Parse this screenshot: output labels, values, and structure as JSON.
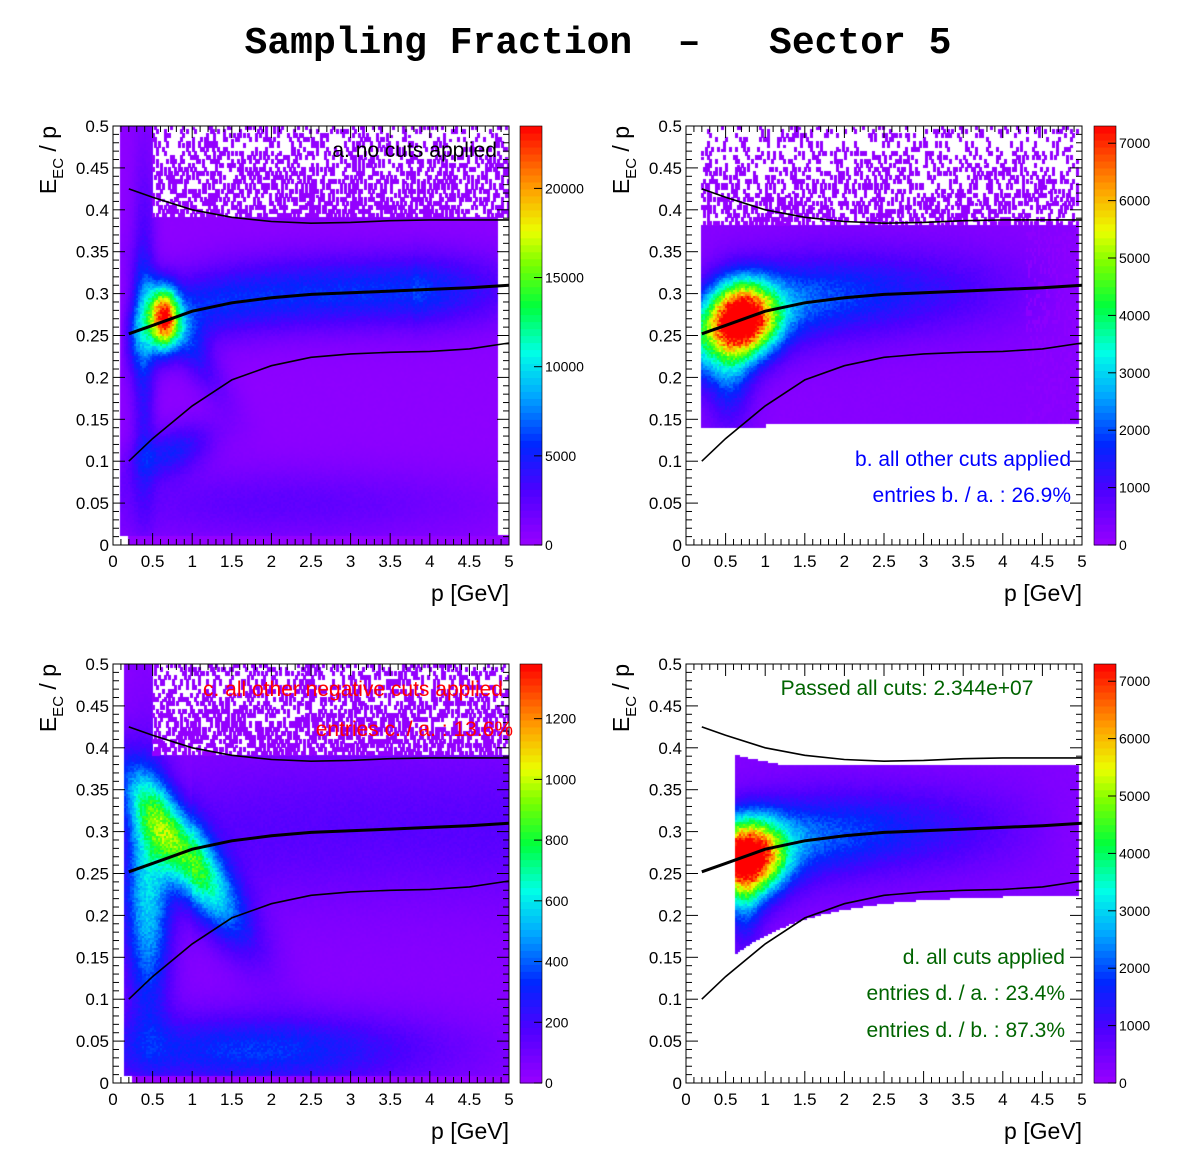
{
  "title": "Sampling Fraction  –   Sector 5",
  "chart_data": [
    {
      "type": "heatmap",
      "panel": "a",
      "annotations": [
        {
          "text": "a. no cuts applied",
          "color": "#000000"
        }
      ],
      "xlabel": "p  [GeV]",
      "ylabel_main": "E",
      "ylabel_sub": "EC",
      "ylabel_tail": " / p",
      "xlim": [
        0,
        5
      ],
      "ylim": [
        0,
        0.5
      ],
      "x_ticks": [
        "0",
        "0.5",
        "1",
        "1.5",
        "2",
        "2.5",
        "3",
        "3.5",
        "4",
        "4.5",
        "5"
      ],
      "y_ticks": [
        "0",
        "0.05",
        "0.1",
        "0.15",
        "0.2",
        "0.25",
        "0.3",
        "0.35",
        "0.4",
        "0.45",
        "0.5"
      ],
      "z_range": [
        0,
        23500
      ],
      "z_ticks": [
        {
          "value": 0,
          "label": "0"
        },
        {
          "value": 5000,
          "label": "5000"
        },
        {
          "value": 10000,
          "label": "10000"
        },
        {
          "value": 15000,
          "label": "15000"
        },
        {
          "value": 20000,
          "label": "20000"
        }
      ],
      "density_model": "a",
      "fill_background": true,
      "curves": {
        "x": [
          0.2,
          0.5,
          1,
          1.5,
          2,
          2.5,
          3,
          3.5,
          4,
          4.5,
          5
        ],
        "upper": [
          0.425,
          0.415,
          0.4,
          0.391,
          0.386,
          0.384,
          0.385,
          0.387,
          0.388,
          0.388,
          0.388
        ],
        "middle": [
          0.252,
          0.262,
          0.279,
          0.289,
          0.295,
          0.299,
          0.301,
          0.303,
          0.305,
          0.307,
          0.31
        ],
        "lower": [
          0.1,
          0.127,
          0.166,
          0.197,
          0.214,
          0.224,
          0.228,
          0.23,
          0.231,
          0.234,
          0.241
        ]
      }
    },
    {
      "type": "heatmap",
      "panel": "b",
      "annotations": [
        {
          "text": "b. all other cuts applied",
          "color": "#0000ff"
        },
        {
          "text": "entries b. / a. : 26.9%",
          "color": "#0000ff"
        }
      ],
      "xlabel": "p  [GeV]",
      "ylabel_main": "E",
      "ylabel_sub": "EC",
      "ylabel_tail": " / p",
      "xlim": [
        0,
        5
      ],
      "ylim": [
        0,
        0.5
      ],
      "x_ticks": [
        "0",
        "0.5",
        "1",
        "1.5",
        "2",
        "2.5",
        "3",
        "3.5",
        "4",
        "4.5",
        "5"
      ],
      "y_ticks": [
        "0",
        "0.05",
        "0.1",
        "0.15",
        "0.2",
        "0.25",
        "0.3",
        "0.35",
        "0.4",
        "0.45",
        "0.5"
      ],
      "z_range": [
        0,
        7300
      ],
      "z_ticks": [
        {
          "value": 0,
          "label": "0"
        },
        {
          "value": 1000,
          "label": "1000"
        },
        {
          "value": 2000,
          "label": "2000"
        },
        {
          "value": 3000,
          "label": "3000"
        },
        {
          "value": 4000,
          "label": "4000"
        },
        {
          "value": 5000,
          "label": "5000"
        },
        {
          "value": 6000,
          "label": "6000"
        },
        {
          "value": 7000,
          "label": "7000"
        }
      ],
      "density_model": "b",
      "fill_background": false,
      "curves": {
        "x": [
          0.2,
          0.5,
          1,
          1.5,
          2,
          2.5,
          3,
          3.5,
          4,
          4.5,
          5
        ],
        "upper": [
          0.425,
          0.415,
          0.4,
          0.391,
          0.386,
          0.384,
          0.385,
          0.387,
          0.388,
          0.388,
          0.388
        ],
        "middle": [
          0.252,
          0.262,
          0.279,
          0.289,
          0.295,
          0.299,
          0.301,
          0.303,
          0.305,
          0.307,
          0.31
        ],
        "lower": [
          0.1,
          0.127,
          0.166,
          0.197,
          0.214,
          0.224,
          0.228,
          0.23,
          0.231,
          0.234,
          0.241
        ]
      }
    },
    {
      "type": "heatmap",
      "panel": "c",
      "annotations": [
        {
          "text": "c. all other negative cuts applied",
          "color": "#ff0000"
        },
        {
          "text": "entries c. / a. : 13.6%",
          "color": "#ff0000"
        }
      ],
      "xlabel": "p  [GeV]",
      "ylabel_main": "E",
      "ylabel_sub": "EC",
      "ylabel_tail": " / p",
      "xlim": [
        0,
        5
      ],
      "ylim": [
        0,
        0.5
      ],
      "x_ticks": [
        "0",
        "0.5",
        "1",
        "1.5",
        "2",
        "2.5",
        "3",
        "3.5",
        "4",
        "4.5",
        "5"
      ],
      "y_ticks": [
        "0",
        "0.05",
        "0.1",
        "0.15",
        "0.2",
        "0.25",
        "0.3",
        "0.35",
        "0.4",
        "0.45",
        "0.5"
      ],
      "z_range": [
        0,
        1380
      ],
      "z_ticks": [
        {
          "value": 0,
          "label": "0"
        },
        {
          "value": 200,
          "label": "200"
        },
        {
          "value": 400,
          "label": "400"
        },
        {
          "value": 600,
          "label": "600"
        },
        {
          "value": 800,
          "label": "800"
        },
        {
          "value": 1000,
          "label": "1000"
        },
        {
          "value": 1200,
          "label": "1200"
        }
      ],
      "density_model": "c",
      "fill_background": true,
      "curves": {
        "x": [
          0.2,
          0.5,
          1,
          1.5,
          2,
          2.5,
          3,
          3.5,
          4,
          4.5,
          5
        ],
        "upper": [
          0.425,
          0.415,
          0.4,
          0.391,
          0.386,
          0.384,
          0.385,
          0.387,
          0.388,
          0.388,
          0.388
        ],
        "middle": [
          0.252,
          0.262,
          0.279,
          0.289,
          0.295,
          0.299,
          0.301,
          0.303,
          0.305,
          0.307,
          0.31
        ],
        "lower": [
          0.1,
          0.127,
          0.166,
          0.197,
          0.214,
          0.224,
          0.228,
          0.23,
          0.231,
          0.234,
          0.241
        ]
      }
    },
    {
      "type": "heatmap",
      "panel": "d",
      "annotations": [
        {
          "text": "Passed all cuts: 2.344e+07",
          "color": "#006400"
        },
        {
          "text": "d. all cuts applied",
          "color": "#006400"
        },
        {
          "text": "entries d. / a. : 23.4%",
          "color": "#006400"
        },
        {
          "text": "entries d. / b. : 87.3%",
          "color": "#006400"
        }
      ],
      "xlabel": "p  [GeV]",
      "ylabel_main": "E",
      "ylabel_sub": "EC",
      "ylabel_tail": " / p",
      "xlim": [
        0,
        5
      ],
      "ylim": [
        0,
        0.5
      ],
      "x_ticks": [
        "0",
        "0.5",
        "1",
        "1.5",
        "2",
        "2.5",
        "3",
        "3.5",
        "4",
        "4.5",
        "5"
      ],
      "y_ticks": [
        "0",
        "0.05",
        "0.1",
        "0.15",
        "0.2",
        "0.25",
        "0.3",
        "0.35",
        "0.4",
        "0.45",
        "0.5"
      ],
      "z_range": [
        0,
        7300
      ],
      "z_ticks": [
        {
          "value": 0,
          "label": "0"
        },
        {
          "value": 1000,
          "label": "1000"
        },
        {
          "value": 2000,
          "label": "2000"
        },
        {
          "value": 3000,
          "label": "3000"
        },
        {
          "value": 4000,
          "label": "4000"
        },
        {
          "value": 5000,
          "label": "5000"
        },
        {
          "value": 6000,
          "label": "6000"
        },
        {
          "value": 7000,
          "label": "7000"
        }
      ],
      "density_model": "d",
      "fill_background": false,
      "curves": {
        "x": [
          0.2,
          0.5,
          1,
          1.5,
          2,
          2.5,
          3,
          3.5,
          4,
          4.5,
          5
        ],
        "upper": [
          0.425,
          0.415,
          0.4,
          0.391,
          0.386,
          0.384,
          0.385,
          0.387,
          0.388,
          0.388,
          0.388
        ],
        "middle": [
          0.252,
          0.262,
          0.279,
          0.289,
          0.295,
          0.299,
          0.301,
          0.303,
          0.305,
          0.307,
          0.31
        ],
        "lower": [
          0.1,
          0.127,
          0.166,
          0.197,
          0.214,
          0.224,
          0.228,
          0.23,
          0.231,
          0.234,
          0.241
        ]
      }
    }
  ]
}
